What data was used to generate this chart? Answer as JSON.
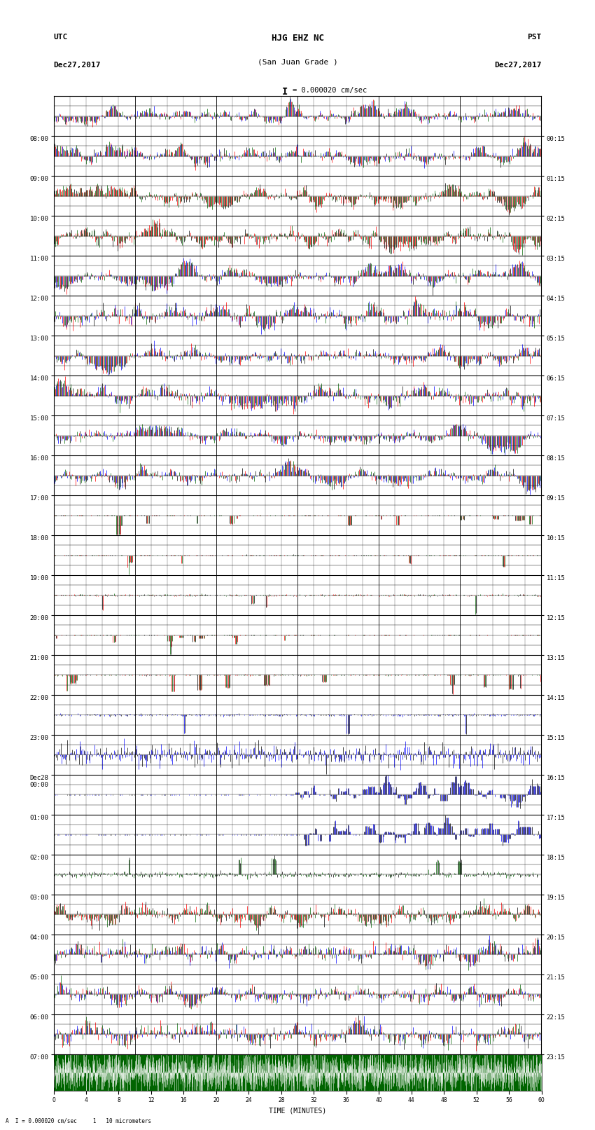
{
  "title_line1": "HJG EHZ NC",
  "title_line2": "(San Juan Grade )",
  "scale_label": "= 0.000020 cm/sec",
  "left_label_top": "UTC",
  "left_label_date": "Dec27,2017",
  "right_label_top": "PST",
  "right_label_date": "Dec27,2017",
  "bottom_label": "TIME (MINUTES)",
  "bottom_scale": "A  I = 0.000020 cm/sec     1   10 micrometers",
  "utc_times": [
    "08:00",
    "09:00",
    "10:00",
    "11:00",
    "12:00",
    "13:00",
    "14:00",
    "15:00",
    "16:00",
    "17:00",
    "18:00",
    "19:00",
    "20:00",
    "21:00",
    "22:00",
    "23:00",
    "Dec28\n00:00",
    "01:00",
    "02:00",
    "03:00",
    "04:00",
    "05:00",
    "06:00",
    "07:00"
  ],
  "pst_times": [
    "00:15",
    "01:15",
    "02:15",
    "03:15",
    "04:15",
    "05:15",
    "06:15",
    "07:15",
    "08:15",
    "09:15",
    "10:15",
    "11:15",
    "12:15",
    "13:15",
    "14:15",
    "15:15",
    "16:15",
    "17:15",
    "18:15",
    "19:15",
    "20:15",
    "21:15",
    "22:15",
    "23:15"
  ],
  "colors": {
    "red": "#ff0000",
    "green": "#006400",
    "blue": "#0000ff",
    "black": "#000000",
    "white": "#ffffff",
    "background": "#ffffff",
    "grid": "#000000",
    "light_grid": "#888888"
  },
  "n_hours": 24,
  "fig_width": 8.5,
  "fig_height": 16.13,
  "dpi": 100
}
